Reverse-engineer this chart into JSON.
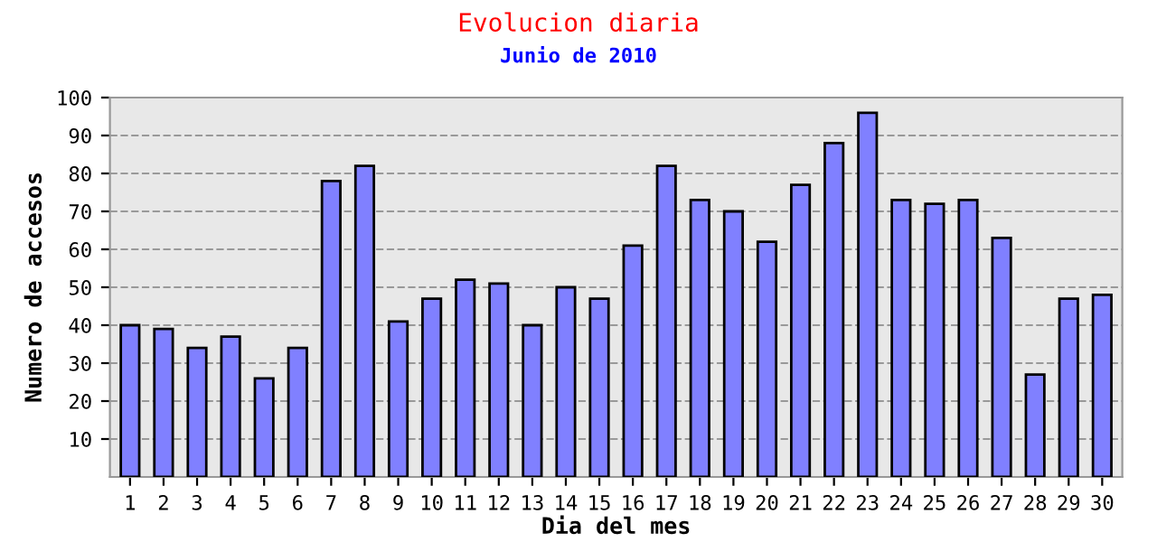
{
  "chart_data": {
    "type": "bar",
    "title": "Evolucion diaria",
    "subtitle": "Junio de 2010",
    "xlabel": "Dia del mes",
    "ylabel": "Numero de accesos",
    "categories": [
      "1",
      "2",
      "3",
      "4",
      "5",
      "6",
      "7",
      "8",
      "9",
      "10",
      "11",
      "12",
      "13",
      "14",
      "15",
      "16",
      "17",
      "18",
      "19",
      "20",
      "21",
      "22",
      "23",
      "24",
      "25",
      "26",
      "27",
      "28",
      "29",
      "30"
    ],
    "values": [
      40,
      39,
      34,
      37,
      26,
      34,
      78,
      82,
      41,
      47,
      52,
      51,
      40,
      50,
      47,
      61,
      82,
      73,
      70,
      62,
      77,
      88,
      96,
      73,
      72,
      73,
      63,
      27,
      47,
      48
    ],
    "color": "#8080ff",
    "ylim": [
      0,
      100
    ],
    "yticks": [
      10,
      20,
      30,
      40,
      50,
      60,
      70,
      80,
      90,
      100
    ],
    "grid": "y"
  }
}
